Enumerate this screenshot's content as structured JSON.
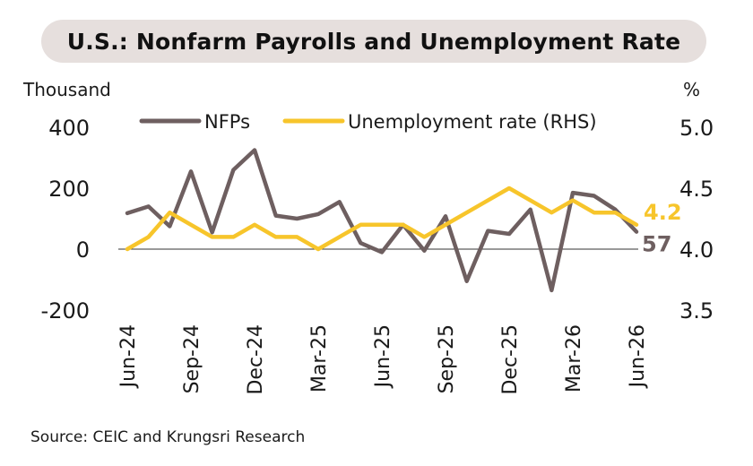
{
  "title": "U.S.: Nonfarm Payrolls and Unemployment Rate",
  "source": "Source: CEIC and Krungsri Research",
  "colors": {
    "nfp": "#6e5f60",
    "unemp": "#f7c52b",
    "title_bg": "#e6dfdd"
  },
  "chart_data": {
    "type": "line",
    "left_axis": {
      "unit": "Thousand",
      "ticks": [
        400,
        200,
        0,
        -200
      ],
      "range": [
        -200,
        400
      ]
    },
    "right_axis": {
      "unit": "%",
      "ticks": [
        "5.0",
        "4.5",
        "4.0",
        "3.5"
      ],
      "range": [
        3.5,
        5.0
      ]
    },
    "x_ticks": [
      "Jun-24",
      "Sep-24",
      "Dec-24",
      "Mar-25",
      "Jun-25",
      "Sep-25",
      "Dec-25",
      "Mar-26",
      "Jun-26"
    ],
    "x_tick_index": [
      0,
      3,
      6,
      9,
      12,
      15,
      18,
      21,
      24
    ],
    "x": [
      "Jun-24",
      "Jul-24",
      "Aug-24",
      "Sep-24",
      "Oct-24",
      "Nov-24",
      "Dec-24",
      "Jan-25",
      "Feb-25",
      "Mar-25",
      "Apr-25",
      "May-25",
      "Jun-25",
      "Jul-25",
      "Aug-25",
      "Sep-25",
      "Oct-25",
      "Nov-25",
      "Dec-25",
      "Jan-26",
      "Feb-26",
      "Mar-26",
      "Apr-26",
      "May-26",
      "Jun-26"
    ],
    "legend_placement": "top",
    "series": [
      {
        "name": "NFPs",
        "axis": "left",
        "values": [
          118,
          140,
          75,
          255,
          55,
          260,
          325,
          110,
          100,
          115,
          155,
          20,
          -10,
          80,
          -5,
          108,
          -105,
          60,
          50,
          130,
          -135,
          185,
          175,
          130,
          57
        ],
        "end_label": "57"
      },
      {
        "name": "Unemployment rate  (RHS)",
        "axis": "right",
        "values": [
          4.0,
          4.1,
          4.3,
          4.2,
          4.1,
          4.1,
          4.2,
          4.1,
          4.1,
          4.0,
          4.1,
          4.2,
          4.2,
          4.2,
          4.1,
          4.2,
          4.3,
          4.4,
          4.5,
          4.4,
          4.3,
          4.4,
          4.3,
          4.3,
          4.2
        ],
        "end_label": "4.2"
      }
    ]
  }
}
